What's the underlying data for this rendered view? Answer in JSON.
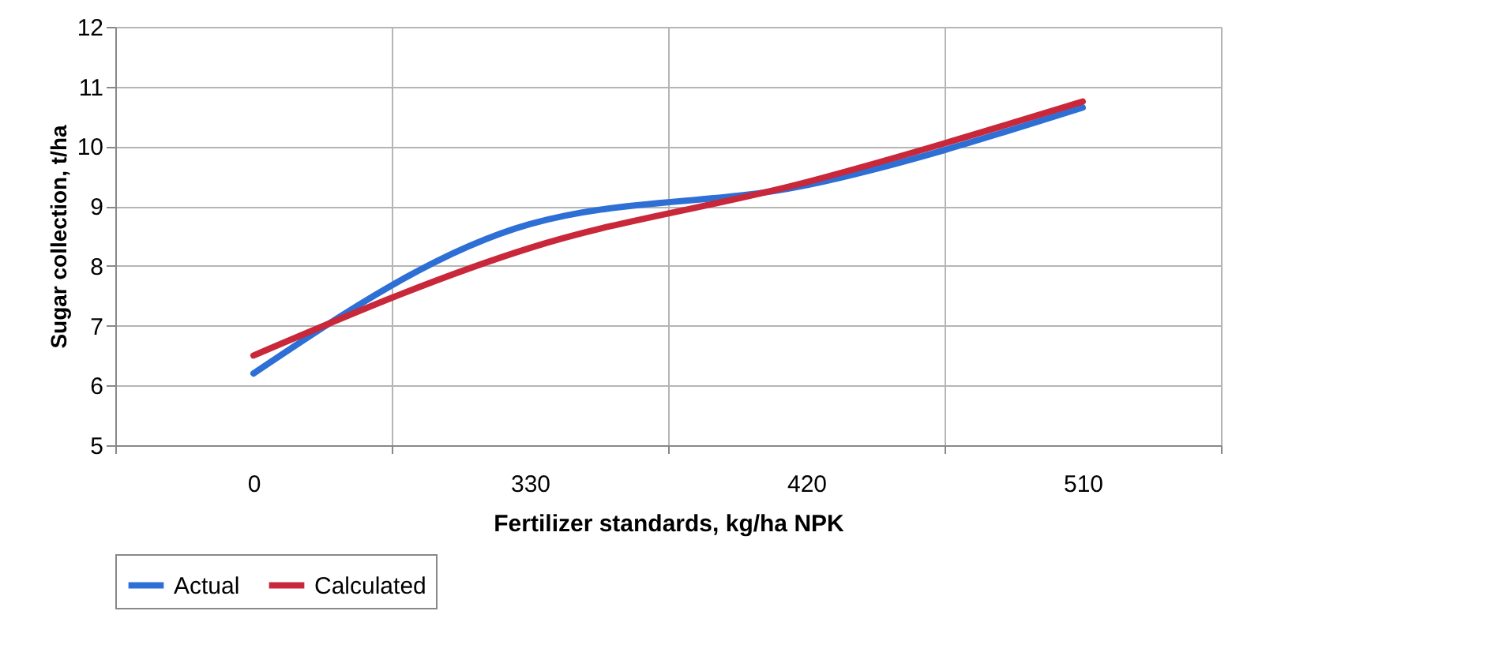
{
  "chart_data": {
    "type": "line",
    "xlabel": "Fertilizer standards, kg/ha NPK",
    "ylabel": "Sugar collection, t/ha",
    "categories": [
      "0",
      "330",
      "420",
      "510"
    ],
    "series": [
      {
        "name": "Actual",
        "color": "#2e6fd6",
        "values": [
          6.2,
          8.7,
          9.35,
          10.65
        ]
      },
      {
        "name": "Calculated",
        "color": "#c8283a",
        "values": [
          6.5,
          8.3,
          9.4,
          10.75
        ]
      }
    ],
    "ylim": [
      5,
      12
    ],
    "yticks": [
      5,
      6,
      7,
      8,
      9,
      10,
      11,
      12
    ],
    "grid": true,
    "legend": "bottom",
    "marker": "none",
    "line_style": "solid"
  }
}
